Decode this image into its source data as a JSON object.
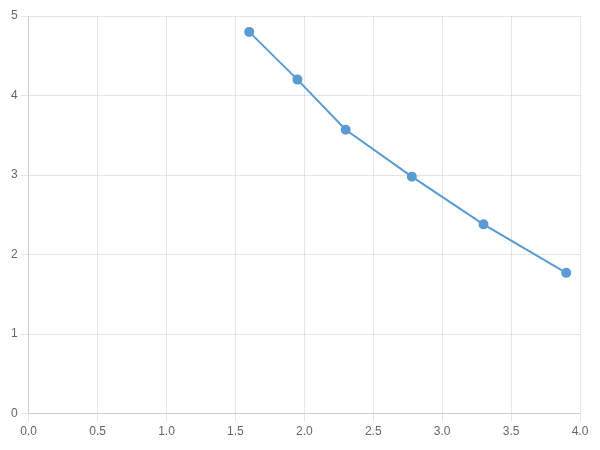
{
  "chart_data": {
    "type": "line",
    "x": [
      1.6,
      1.95,
      2.3,
      2.78,
      3.3,
      3.9
    ],
    "values": [
      4.8,
      4.2,
      3.57,
      2.98,
      2.38,
      1.77
    ],
    "color": "#5b9bd5",
    "marker": "circle",
    "xlim": [
      0.0,
      4.0
    ],
    "ylim": [
      0,
      5
    ],
    "xticks": [
      {
        "value": 0,
        "label": "0.0"
      },
      0.5,
      {
        "value": 1,
        "label": "1.0"
      },
      1.5,
      {
        "value": 2,
        "label": "2.0"
      },
      2.5,
      {
        "value": 3,
        "label": "3.0"
      },
      3.5,
      {
        "value": 4,
        "label": "4.0"
      }
    ],
    "yticks": [
      0,
      1,
      2,
      3,
      4,
      5
    ],
    "grid": true
  }
}
